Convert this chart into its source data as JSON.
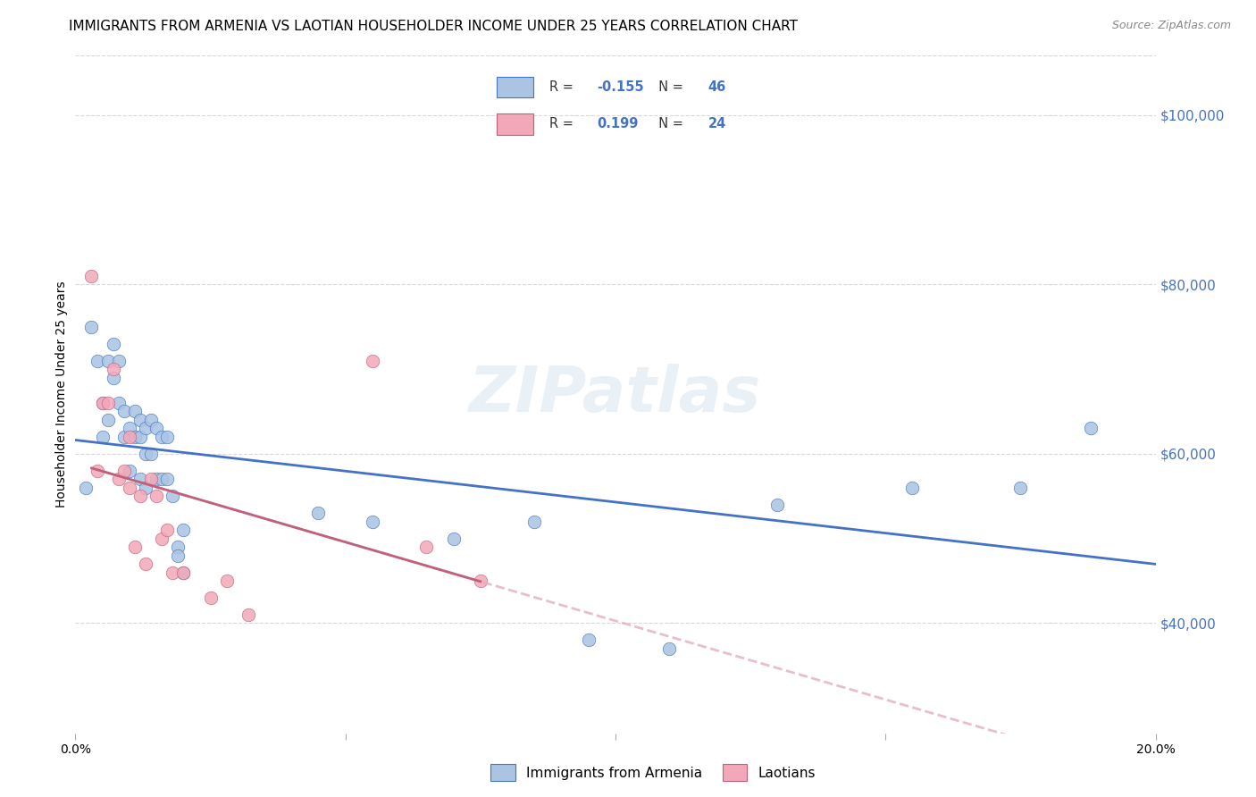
{
  "title": "IMMIGRANTS FROM ARMENIA VS LAOTIAN HOUSEHOLDER INCOME UNDER 25 YEARS CORRELATION CHART",
  "source": "Source: ZipAtlas.com",
  "ylabel": "Householder Income Under 25 years",
  "xlim": [
    0.0,
    0.2
  ],
  "ylim": [
    27000,
    107000
  ],
  "xticks": [
    0.0,
    0.05,
    0.1,
    0.15,
    0.2
  ],
  "xtick_labels": [
    "0.0%",
    "",
    "",
    "",
    "20.0%"
  ],
  "ytick_labels": [
    "$40,000",
    "$60,000",
    "$80,000",
    "$100,000"
  ],
  "yticks": [
    40000,
    60000,
    80000,
    100000
  ],
  "r_armenia": -0.155,
  "n_armenia": 46,
  "r_laotian": 0.199,
  "n_laotian": 24,
  "armenia_color": "#aac4e2",
  "laotian_color": "#f2a8b8",
  "armenia_line_color": "#4472c4",
  "laotian_line_color": "#c0607a",
  "trend_ext_color": "#e0b0bc",
  "armenia_points_x": [
    0.002,
    0.003,
    0.004,
    0.005,
    0.005,
    0.006,
    0.006,
    0.007,
    0.007,
    0.008,
    0.008,
    0.009,
    0.009,
    0.01,
    0.01,
    0.011,
    0.011,
    0.012,
    0.012,
    0.012,
    0.013,
    0.013,
    0.013,
    0.014,
    0.014,
    0.015,
    0.015,
    0.016,
    0.016,
    0.017,
    0.017,
    0.018,
    0.019,
    0.019,
    0.02,
    0.02,
    0.045,
    0.055,
    0.07,
    0.085,
    0.095,
    0.11,
    0.13,
    0.155,
    0.175,
    0.188
  ],
  "armenia_points_y": [
    56000,
    75000,
    71000,
    66000,
    62000,
    71000,
    64000,
    73000,
    69000,
    66000,
    71000,
    65000,
    62000,
    63000,
    58000,
    65000,
    62000,
    64000,
    62000,
    57000,
    63000,
    60000,
    56000,
    64000,
    60000,
    57000,
    63000,
    62000,
    57000,
    62000,
    57000,
    55000,
    49000,
    48000,
    51000,
    46000,
    53000,
    52000,
    50000,
    52000,
    38000,
    37000,
    54000,
    56000,
    56000,
    63000
  ],
  "laotian_points_x": [
    0.003,
    0.004,
    0.005,
    0.006,
    0.007,
    0.008,
    0.009,
    0.01,
    0.01,
    0.011,
    0.012,
    0.013,
    0.014,
    0.015,
    0.016,
    0.017,
    0.018,
    0.02,
    0.025,
    0.028,
    0.032,
    0.055,
    0.065,
    0.075
  ],
  "laotian_points_y": [
    81000,
    58000,
    66000,
    66000,
    70000,
    57000,
    58000,
    62000,
    56000,
    49000,
    55000,
    47000,
    57000,
    55000,
    50000,
    51000,
    46000,
    46000,
    43000,
    45000,
    41000,
    71000,
    49000,
    45000
  ],
  "background_color": "#ffffff",
  "grid_color": "#d8d8d8",
  "title_fontsize": 11,
  "axis_label_fontsize": 10,
  "tick_fontsize": 10,
  "marker_size": 110,
  "watermark": "ZIPatlas"
}
